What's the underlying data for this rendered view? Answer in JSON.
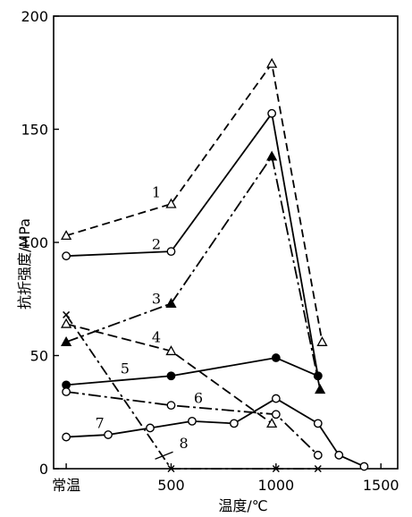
{
  "chart_data": {
    "type": "line",
    "title": "",
    "xlabel": "温度/℃",
    "ylabel": "抗折强度/MPa",
    "xlim": [
      -60,
      1580
    ],
    "ylim": [
      0,
      200
    ],
    "x_ticks": [
      {
        "value": 0,
        "label": "常温"
      },
      {
        "value": 500,
        "label": "500"
      },
      {
        "value": 1000,
        "label": "1000"
      },
      {
        "value": 1500,
        "label": "1500"
      }
    ],
    "y_ticks": [
      0,
      50,
      100,
      150,
      200
    ],
    "series": [
      {
        "name": "1",
        "dash": "9,5",
        "marker": "triangle-open",
        "points": [
          [
            0,
            103
          ],
          [
            500,
            117
          ],
          [
            980,
            179
          ],
          [
            1220,
            56
          ]
        ],
        "label_at": [
          430,
          120
        ]
      },
      {
        "name": "2",
        "dash": "",
        "marker": "circle-open",
        "points": [
          [
            0,
            94
          ],
          [
            500,
            96
          ],
          [
            980,
            157
          ],
          [
            1200,
            41
          ]
        ],
        "label_at": [
          430,
          97
        ]
      },
      {
        "name": "3",
        "dash": "14,4,3,4",
        "marker": "triangle-filled",
        "points": [
          [
            0,
            56
          ],
          [
            500,
            73
          ],
          [
            980,
            138
          ],
          [
            1210,
            35
          ]
        ],
        "label_at": [
          430,
          73
        ]
      },
      {
        "name": "4",
        "dash": "11,5",
        "marker": "triangle-open",
        "points": [
          [
            0,
            64
          ],
          [
            500,
            52
          ],
          [
            980,
            20
          ]
        ],
        "label_at": [
          430,
          56
        ]
      },
      {
        "name": "5",
        "dash": "",
        "marker": "circle-filled",
        "points": [
          [
            0,
            37
          ],
          [
            500,
            41
          ],
          [
            1000,
            49
          ],
          [
            1200,
            41
          ]
        ],
        "label_at": [
          280,
          42
        ]
      },
      {
        "name": "6",
        "dash": "14,4,3,4",
        "marker": "circle-open",
        "points": [
          [
            0,
            34
          ],
          [
            500,
            28
          ],
          [
            1000,
            24
          ],
          [
            1200,
            6
          ]
        ],
        "label_at": [
          630,
          29
        ]
      },
      {
        "name": "7",
        "dash": "",
        "marker": "circle-open",
        "points": [
          [
            0,
            14
          ],
          [
            200,
            15
          ],
          [
            400,
            18
          ],
          [
            600,
            21
          ],
          [
            800,
            20
          ],
          [
            1000,
            31
          ],
          [
            1200,
            20
          ],
          [
            1300,
            6
          ],
          [
            1420,
            1
          ]
        ],
        "label_at": [
          160,
          18
        ]
      },
      {
        "name": "8",
        "dash": "12,4,3,4",
        "marker": "x",
        "points": [
          [
            0,
            68
          ],
          [
            500,
            0
          ],
          [
            1000,
            0
          ],
          [
            1200,
            0
          ]
        ],
        "label_at": [
          560,
          9
        ]
      }
    ]
  }
}
